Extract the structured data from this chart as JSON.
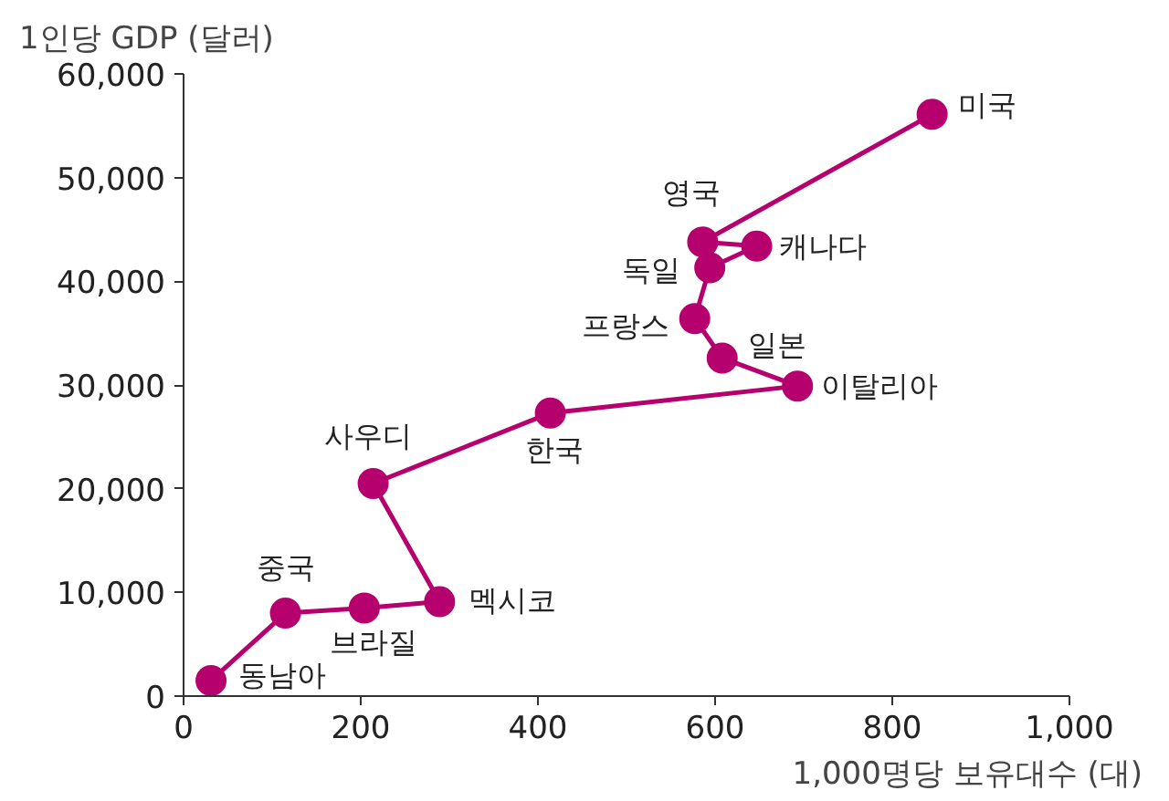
{
  "chart_data": {
    "type": "line",
    "xlabel": "1,000명당 보유대수 (대)",
    "ylabel": "1인당 GDP (달러)",
    "x": [
      31,
      115,
      204,
      289,
      214,
      414,
      693,
      608,
      577,
      594,
      647,
      586,
      845
    ],
    "series": [
      {
        "color": "#b5006e",
        "values": [
          1500,
          8000,
          8500,
          9100,
          20500,
          27300,
          29900,
          32600,
          36400,
          41300,
          43400,
          43800,
          56100
        ]
      }
    ],
    "annotations": [
      {
        "text": "동남아",
        "x": 31,
        "y": 1500
      },
      {
        "text": "중국",
        "x": 115,
        "y": 8000
      },
      {
        "text": "브라질",
        "x": 204,
        "y": 8500
      },
      {
        "text": "멕시코",
        "x": 289,
        "y": 9100
      },
      {
        "text": "사우디",
        "x": 214,
        "y": 20500
      },
      {
        "text": "한국",
        "x": 414,
        "y": 27300
      },
      {
        "text": "이탈리아",
        "x": 693,
        "y": 29900
      },
      {
        "text": "일본",
        "x": 608,
        "y": 32600
      },
      {
        "text": "프랑스",
        "x": 577,
        "y": 36400
      },
      {
        "text": "독일",
        "x": 594,
        "y": 41300
      },
      {
        "text": "캐나다",
        "x": 647,
        "y": 43400
      },
      {
        "text": "영국",
        "x": 586,
        "y": 43800
      },
      {
        "text": "미국",
        "x": 845,
        "y": 56100
      }
    ],
    "xlim": [
      0,
      1000
    ],
    "xticks": [
      0,
      200,
      400,
      600,
      800,
      {
        "value": 1000,
        "label": "1,000"
      }
    ],
    "ylim": [
      0,
      60000
    ],
    "yticks": [
      0,
      {
        "value": 10000,
        "label": "10,000"
      },
      {
        "value": 20000,
        "label": "20,000"
      },
      {
        "value": 30000,
        "label": "30,000"
      },
      {
        "value": 40000,
        "label": "40,000"
      },
      {
        "value": 50000,
        "label": "50,000"
      },
      {
        "value": 60000,
        "label": "60,000"
      }
    ],
    "marker": "circle",
    "grid": false
  }
}
